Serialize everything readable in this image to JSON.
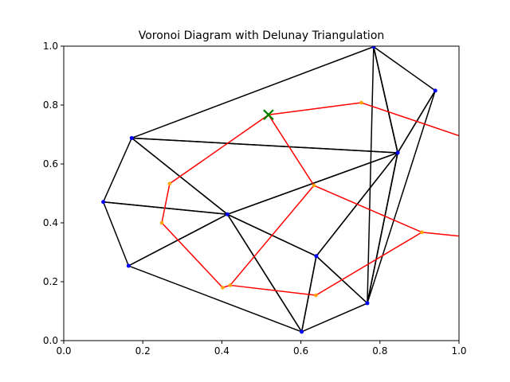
{
  "chart_data": {
    "type": "scatter",
    "title": "Voronoi Diagram with Delunay Triangulation",
    "xlabel": "",
    "ylabel": "",
    "xlim": [
      0.0,
      1.0
    ],
    "ylim": [
      0.0,
      1.0
    ],
    "xticks": [
      0.0,
      0.2,
      0.4,
      0.6,
      0.8,
      1.0
    ],
    "yticks": [
      0.0,
      0.2,
      0.4,
      0.6,
      0.8,
      1.0
    ],
    "xtick_labels": [
      "0.0",
      "0.2",
      "0.4",
      "0.6",
      "0.8",
      "1.0"
    ],
    "ytick_labels": [
      "0.0",
      "0.2",
      "0.4",
      "0.6",
      "0.8",
      "1.0"
    ],
    "grid": false,
    "colors": {
      "points": "#0000ff",
      "triangulation": "#000000",
      "voronoi_edges": "#ff0000",
      "voronoi_vertices": "#ffa500",
      "marker": "#008000"
    },
    "points": [
      [
        0.784,
        0.998
      ],
      [
        0.94,
        0.849
      ],
      [
        0.845,
        0.638
      ],
      [
        0.172,
        0.688
      ],
      [
        0.1,
        0.471
      ],
      [
        0.414,
        0.429
      ],
      [
        0.164,
        0.254
      ],
      [
        0.639,
        0.287
      ],
      [
        0.768,
        0.127
      ],
      [
        0.602,
        0.03
      ]
    ],
    "triangles": [
      [
        0,
        3,
        2
      ],
      [
        0,
        1,
        2
      ],
      [
        0,
        8,
        2
      ],
      [
        1,
        2,
        8
      ],
      [
        3,
        5,
        2
      ],
      [
        3,
        4,
        5
      ],
      [
        4,
        6,
        5
      ],
      [
        6,
        9,
        5
      ],
      [
        5,
        7,
        2
      ],
      [
        5,
        9,
        7
      ],
      [
        7,
        9,
        8
      ],
      [
        7,
        2,
        8
      ]
    ],
    "voronoi_vertices": [
      [
        0.518,
        0.767
      ],
      [
        0.753,
        0.808
      ],
      [
        0.633,
        0.527
      ],
      [
        0.268,
        0.533
      ],
      [
        0.248,
        0.4
      ],
      [
        0.402,
        0.18
      ],
      [
        0.421,
        0.188
      ],
      [
        0.638,
        0.154
      ],
      [
        0.906,
        0.368
      ]
    ],
    "voronoi_edges": [
      [
        0,
        1
      ],
      [
        0,
        3
      ],
      [
        0,
        2
      ],
      [
        2,
        6
      ],
      [
        2,
        8
      ],
      [
        3,
        4
      ],
      [
        4,
        5
      ],
      [
        5,
        6
      ],
      [
        6,
        7
      ],
      [
        7,
        8
      ]
    ],
    "voronoi_rays": [
      [
        [
          0.753,
          0.808
        ],
        [
          1.0,
          0.696
        ]
      ],
      [
        [
          0.906,
          0.368
        ],
        [
          1.0,
          0.355
        ]
      ]
    ],
    "marker": {
      "x": 0.518,
      "y": 0.767,
      "symbol": "x"
    }
  }
}
